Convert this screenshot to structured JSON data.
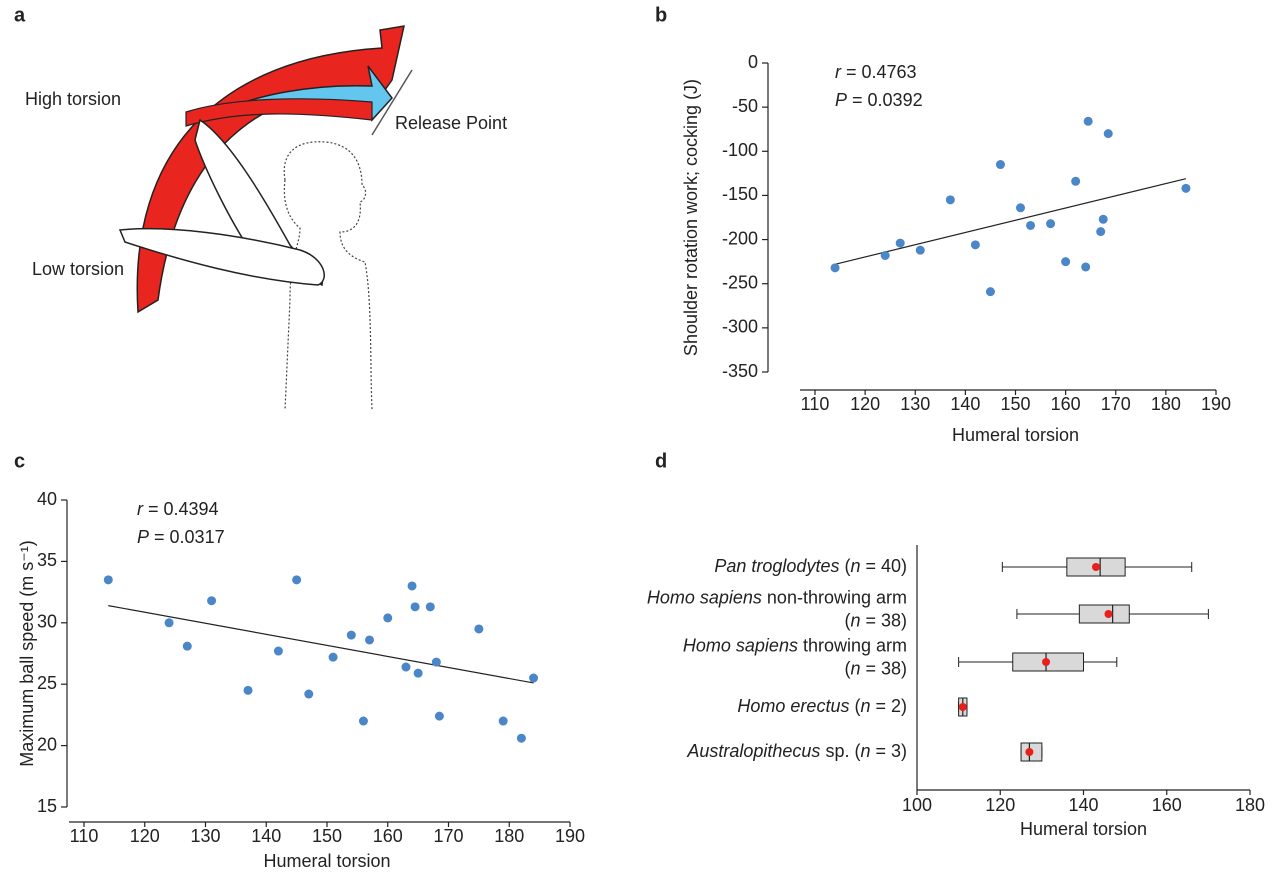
{
  "figure_a": {
    "panel_label": "a",
    "labels": [
      "High torsion",
      "Release Point",
      "Low torsion"
    ]
  },
  "chart_data": [
    {
      "type": "scatter",
      "panel_label": "b",
      "xlabel": "Humeral torsion",
      "ylabel": "Shoulder rotation work; cocking  (J)",
      "annotation": [
        [
          {
            "text": "r",
            "italic": true
          },
          {
            "text": " = 0.4763"
          }
        ],
        [
          {
            "text": "P",
            "italic": true
          },
          {
            "text": " = 0.0392"
          }
        ]
      ],
      "x": [
        114,
        124,
        127,
        131,
        137,
        142,
        145,
        147,
        151,
        153,
        157,
        160,
        162,
        164,
        164.5,
        167,
        167.5,
        168.5,
        184
      ],
      "values": [
        -232,
        -218,
        -204,
        -212,
        -155,
        -206,
        -259,
        -115,
        -164,
        -184,
        -182,
        -225,
        -134,
        -231,
        -66,
        -191,
        -177,
        -80,
        -142
      ],
      "color": "#4a86c8",
      "trend": {
        "x": [
          114,
          184
        ],
        "y": [
          -228,
          -131
        ]
      },
      "xlim": [
        110,
        190
      ],
      "xticks": [
        110,
        120,
        130,
        140,
        150,
        160,
        170,
        180,
        190
      ],
      "ylim": [
        -350,
        0
      ],
      "yticks": [
        0,
        -50,
        -100,
        -150,
        -200,
        -250,
        -300,
        -350
      ],
      "grid": false
    },
    {
      "type": "scatter",
      "panel_label": "c",
      "xlabel": "Humeral torsion",
      "ylabel": "Maximum ball speed (m s⁻¹)",
      "annotation": [
        [
          {
            "text": "r",
            "italic": true
          },
          {
            "text": " = 0.4394"
          }
        ],
        [
          {
            "text": "P",
            "italic": true
          },
          {
            "text": " = 0.0317"
          }
        ]
      ],
      "x": [
        114,
        124,
        127,
        131,
        137,
        142,
        145,
        147,
        151,
        154,
        156,
        157,
        160,
        163,
        164,
        164.5,
        165,
        167,
        168,
        168.5,
        175,
        179,
        182,
        184
      ],
      "values": [
        33.5,
        30,
        28.1,
        31.8,
        24.5,
        27.7,
        33.5,
        24.2,
        27.2,
        29,
        22,
        28.6,
        30.4,
        26.4,
        33,
        31.3,
        25.9,
        31.3,
        26.8,
        22.4,
        29.5,
        22,
        20.6,
        25.5
      ],
      "color": "#4a86c8",
      "trend": {
        "x": [
          114,
          184
        ],
        "y": [
          31.4,
          25.1
        ]
      },
      "xlim": [
        110,
        190
      ],
      "xticks": [
        110,
        120,
        130,
        140,
        150,
        160,
        170,
        180,
        190
      ],
      "ylim": [
        15,
        40
      ],
      "yticks": [
        15,
        20,
        25,
        30,
        35,
        40
      ],
      "grid": false
    },
    {
      "type": "box",
      "panel_label": "d",
      "xlabel": "Humeral torsion",
      "categories": [
        [
          [
            {
              "text": "Pan troglodytes",
              "italic": true
            },
            {
              "text": " ("
            },
            {
              "text": "n",
              "italic": true
            },
            {
              "text": " = 40)"
            }
          ]
        ],
        [
          [
            {
              "text": "Homo sapiens",
              "italic": true
            },
            {
              "text": " non-throwing arm"
            }
          ],
          [
            {
              "text": "("
            },
            {
              "text": "n",
              "italic": true
            },
            {
              "text": " = 38)"
            }
          ]
        ],
        [
          [
            {
              "text": "Homo sapiens",
              "italic": true
            },
            {
              "text": " throwing arm"
            }
          ],
          [
            {
              "text": "("
            },
            {
              "text": "n",
              "italic": true
            },
            {
              "text": " = 38)"
            }
          ]
        ],
        [
          [
            {
              "text": "Homo erectus",
              "italic": true
            },
            {
              "text": " ("
            },
            {
              "text": "n",
              "italic": true
            },
            {
              "text": " = 2)"
            }
          ]
        ],
        [
          [
            {
              "text": "Australopithecus",
              "italic": true
            },
            {
              "text": " sp. ("
            },
            {
              "text": "n",
              "italic": true
            },
            {
              "text": " = 3)"
            }
          ]
        ]
      ],
      "whisker_low": [
        120.5,
        124,
        110,
        110,
        125
      ],
      "q1": [
        136,
        139,
        123,
        110,
        125
      ],
      "median": [
        144,
        147,
        131,
        111,
        127
      ],
      "q3": [
        150,
        151,
        140,
        112,
        130
      ],
      "whisker_high": [
        166,
        170,
        148,
        112,
        130
      ],
      "mean": [
        143,
        146,
        131,
        111,
        127
      ],
      "color": "#d9d9d9",
      "mean_color": "#e8201c",
      "xlim": [
        100,
        180
      ],
      "xticks": [
        100,
        120,
        140,
        160,
        180
      ],
      "grid": false
    }
  ]
}
